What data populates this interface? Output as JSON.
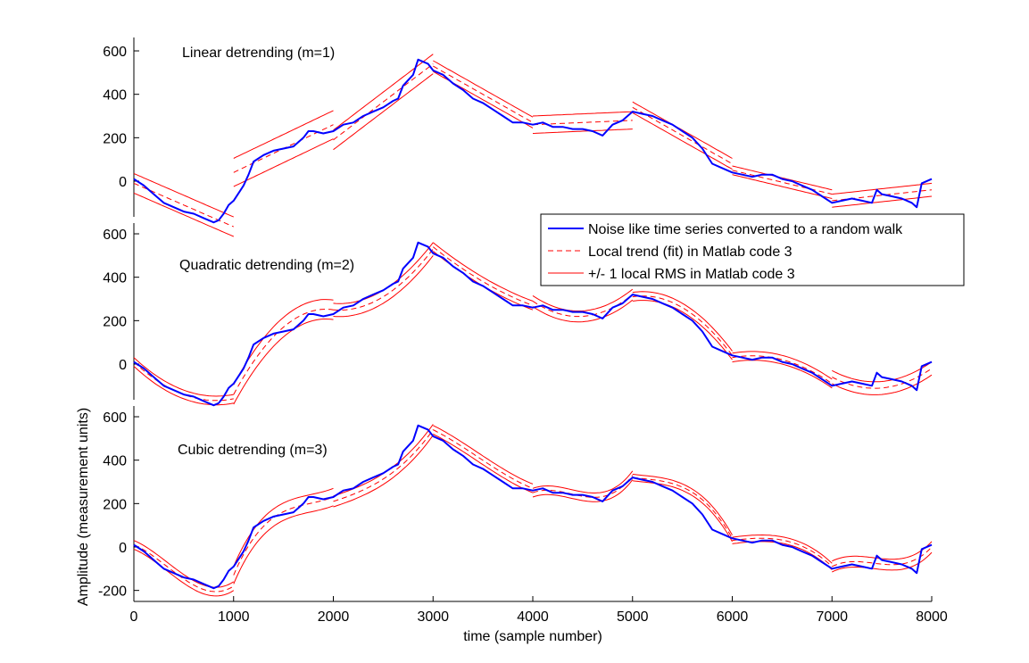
{
  "chart_data": {
    "type": "line",
    "xlabel": "time (sample number)",
    "ylabel": "Amplitude (measurement units)",
    "xlim": [
      0,
      8000
    ],
    "xticks": [
      0,
      1000,
      2000,
      3000,
      4000,
      5000,
      6000,
      7000,
      8000
    ],
    "grid": false,
    "legend_position": "right, between first and second panel",
    "colors": {
      "signal": "#0000ff",
      "fit": "#ff0000",
      "axes": "#000000"
    },
    "legend": [
      "Noise like time series converted to a random walk",
      "Local trend (fit) in Matlab code 3",
      "+/- 1 local RMS in Matlab code 3"
    ],
    "segment_size": 1000,
    "random_walk": {
      "name": "Noise like time series converted to a random walk",
      "x": [
        0,
        100,
        200,
        300,
        400,
        500,
        600,
        700,
        800,
        850,
        900,
        950,
        1000,
        1100,
        1150,
        1200,
        1300,
        1400,
        1500,
        1600,
        1700,
        1750,
        1800,
        1900,
        2000,
        2100,
        2200,
        2300,
        2400,
        2500,
        2600,
        2650,
        2700,
        2800,
        2850,
        2900,
        2950,
        3000,
        3100,
        3200,
        3300,
        3400,
        3500,
        3600,
        3700,
        3800,
        3900,
        4000,
        4100,
        4200,
        4300,
        4400,
        4500,
        4600,
        4700,
        4800,
        4900,
        5000,
        5100,
        5200,
        5300,
        5400,
        5500,
        5600,
        5700,
        5800,
        5900,
        6000,
        6100,
        6200,
        6300,
        6400,
        6500,
        6600,
        6700,
        6800,
        6900,
        7000,
        7100,
        7200,
        7300,
        7400,
        7450,
        7500,
        7600,
        7700,
        7800,
        7850,
        7900,
        8000
      ],
      "y": [
        10,
        -20,
        -60,
        -100,
        -120,
        -140,
        -150,
        -170,
        -190,
        -180,
        -150,
        -110,
        -90,
        -20,
        30,
        90,
        120,
        140,
        150,
        160,
        200,
        230,
        230,
        220,
        230,
        260,
        270,
        300,
        320,
        340,
        370,
        380,
        440,
        490,
        560,
        550,
        540,
        510,
        490,
        450,
        420,
        380,
        360,
        330,
        300,
        270,
        270,
        260,
        270,
        250,
        250,
        240,
        240,
        230,
        210,
        260,
        280,
        320,
        310,
        300,
        280,
        260,
        230,
        200,
        150,
        80,
        60,
        40,
        30,
        20,
        30,
        30,
        10,
        0,
        -20,
        -40,
        -70,
        -100,
        -90,
        -80,
        -90,
        -100,
        -40,
        -60,
        -70,
        -80,
        -100,
        -120,
        -10,
        10
      ]
    },
    "panels": [
      {
        "label": "Linear detrending (m=1)",
        "yticks": [
          0,
          200,
          400,
          600
        ],
        "fit_segments": [
          {
            "x": [
              0,
              1000
            ],
            "y": [
              -10,
              -210
            ]
          },
          {
            "x": [
              1000,
              2000
            ],
            "y": [
              40,
              260
            ]
          },
          {
            "x": [
              2000,
              3000
            ],
            "y": [
              190,
              540
            ]
          },
          {
            "x": [
              3000,
              4000
            ],
            "y": [
              530,
              270
            ]
          },
          {
            "x": [
              4000,
              5000
            ],
            "y": [
              260,
              280
            ]
          },
          {
            "x": [
              5000,
              6000
            ],
            "y": [
              340,
              80
            ]
          },
          {
            "x": [
              6000,
              7000
            ],
            "y": [
              50,
              -60
            ]
          },
          {
            "x": [
              7000,
              8000
            ],
            "y": [
              -90,
              -40
            ]
          }
        ],
        "rms": [
          45,
          65,
          45,
          25,
          40,
          25,
          20,
          30
        ]
      },
      {
        "label": "Quadratic detrending (m=2)",
        "yticks": [
          0,
          200,
          400,
          600
        ],
        "fit_segments": [
          {
            "x": [
              0,
              500,
              1000
            ],
            "y": [
              10,
              -140,
              -160
            ]
          },
          {
            "x": [
              1000,
              1500,
              2000
            ],
            "y": [
              -140,
              170,
              250
            ]
          },
          {
            "x": [
              2000,
              2500,
              3000
            ],
            "y": [
              250,
              310,
              530
            ]
          },
          {
            "x": [
              3000,
              3500,
              4000
            ],
            "y": [
              540,
              380,
              270
            ]
          },
          {
            "x": [
              4000,
              4500,
              5000
            ],
            "y": [
              290,
              220,
              320
            ]
          },
          {
            "x": [
              5000,
              5500,
              6000
            ],
            "y": [
              310,
              260,
              40
            ]
          },
          {
            "x": [
              6000,
              6500,
              7000
            ],
            "y": [
              30,
              20,
              -90
            ]
          },
          {
            "x": [
              7000,
              7500,
              8000
            ],
            "y": [
              -60,
              -110,
              -20
            ]
          }
        ],
        "rms": [
          20,
          45,
          30,
          20,
          25,
          20,
          20,
          30
        ]
      },
      {
        "label": "Cubic detrending (m=3)",
        "yticks": [
          -200,
          0,
          200,
          400,
          600
        ],
        "fit_segments": [
          {
            "x": [
              0,
              333,
              667,
              1000
            ],
            "y": [
              10,
              -90,
              -190,
              -180
            ]
          },
          {
            "x": [
              1000,
              1333,
              1667,
              2000
            ],
            "y": [
              -130,
              110,
              190,
              230
            ]
          },
          {
            "x": [
              2000,
              2333,
              2667,
              3000
            ],
            "y": [
              210,
              270,
              370,
              540
            ]
          },
          {
            "x": [
              3000,
              3333,
              3667,
              4000
            ],
            "y": [
              540,
              450,
              350,
              270
            ]
          },
          {
            "x": [
              4000,
              4333,
              4667,
              5000
            ],
            "y": [
              250,
              250,
              230,
              330
            ]
          },
          {
            "x": [
              5000,
              5333,
              5667,
              6000
            ],
            "y": [
              320,
              300,
              230,
              40
            ]
          },
          {
            "x": [
              6000,
              6333,
              6667,
              7000
            ],
            "y": [
              30,
              40,
              10,
              -90
            ]
          },
          {
            "x": [
              7000,
              7333,
              7667,
              8000
            ],
            "y": [
              -90,
              -70,
              -80,
              0
            ]
          }
        ],
        "rms": [
          20,
          40,
          25,
          20,
          20,
          15,
          15,
          25
        ]
      }
    ]
  }
}
